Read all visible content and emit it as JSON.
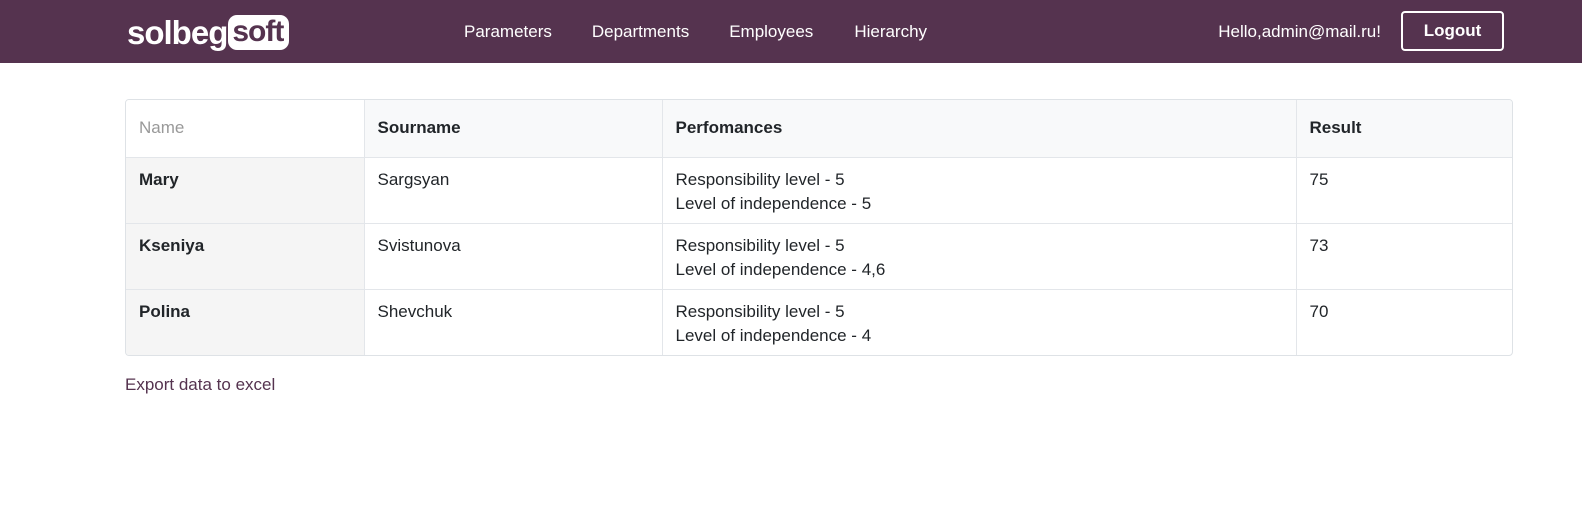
{
  "header": {
    "logo_left": "solbeg",
    "logo_right": "soft",
    "nav": [
      {
        "label": "Parameters"
      },
      {
        "label": "Departments"
      },
      {
        "label": "Employees"
      },
      {
        "label": "Hierarchy"
      }
    ],
    "greeting": "Hello,admin@mail.ru!",
    "logout_label": "Logout",
    "brand_color": "#55334f"
  },
  "table": {
    "columns": [
      "Name",
      "Sourname",
      "Perfomances",
      "Result"
    ],
    "rows": [
      {
        "name": "Mary",
        "surname": "Sargsyan",
        "performances": [
          "Responsibility level - 5",
          "Level of independence - 5"
        ],
        "result": "75"
      },
      {
        "name": "Kseniya",
        "surname": "Svistunova",
        "performances": [
          "Responsibility level - 5",
          "Level of independence - 4,6"
        ],
        "result": "73"
      },
      {
        "name": "Polina",
        "surname": "Shevchuk",
        "performances": [
          "Responsibility level - 5",
          "Level of independence - 4"
        ],
        "result": "70"
      }
    ]
  },
  "export_label": "Export data to excel"
}
